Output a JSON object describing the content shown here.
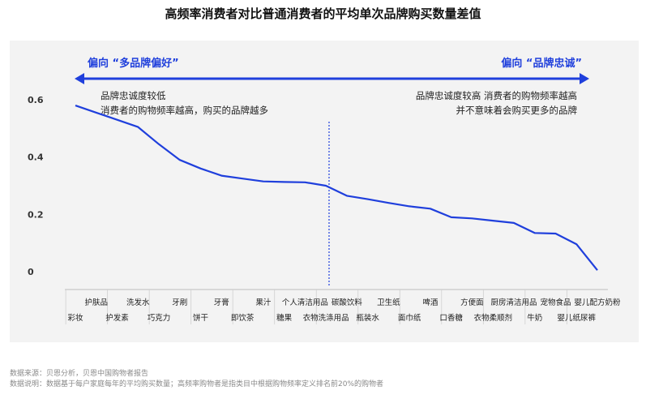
{
  "title": "高频率消费者对比普通消费者的平均单次品牌购买数量差值",
  "colors": {
    "line": "#1f3fdc",
    "arrow": "#1f3fdc",
    "panel": "#f3f3f3",
    "text": "#222222"
  },
  "arrow": {
    "left_label": "偏向 “多品牌偏好”",
    "right_label": "偏向 “品牌忠诚”"
  },
  "annotations": {
    "left": [
      "品牌忠诚度较低",
      "消费者的购物频率越高，购买的品牌越多"
    ],
    "right": [
      "品牌忠诚度较高 消费者的购物频率越高",
      "并不意味着会购买更多的品牌"
    ]
  },
  "chart_data": {
    "type": "line",
    "title": "高频率消费者对比普通消费者的平均单次品牌购买数量差值",
    "xlabel": "",
    "ylabel": "",
    "ylim": [
      0,
      0.6
    ],
    "yticks": [
      0,
      0.2,
      0.4,
      0.6
    ],
    "grid": false,
    "categories": [
      "彩妆",
      "护肤品",
      "护发素",
      "洗发水",
      "巧克力",
      "牙刷",
      "饼干",
      "牙膏",
      "即饮茶",
      "果汁",
      "糖果",
      "个人清洁用品",
      "衣物洗涤用品",
      "碳酸饮料",
      "瓶装水",
      "卫生纸",
      "面巾纸",
      "啤酒",
      "口香糖",
      "方便面",
      "衣物柔顺剂",
      "厨房清洁用品",
      "牛奶",
      "宠物食品",
      "婴儿纸尿裤",
      "婴儿配方奶粉"
    ],
    "series": [
      {
        "name": "",
        "values": [
          0.58,
          0.555,
          0.53,
          0.505,
          0.445,
          0.39,
          0.36,
          0.335,
          0.325,
          0.315,
          0.313,
          0.312,
          0.3,
          0.265,
          0.253,
          0.24,
          0.228,
          0.22,
          0.19,
          0.186,
          0.178,
          0.17,
          0.135,
          0.133,
          0.096,
          0.005
        ]
      }
    ],
    "divider_after_category": "衣物洗涤用品"
  },
  "footer": {
    "source": "数据来源：贝恩分析，贝恩中国购物者报告",
    "note": "数据说明：数据基于每户家庭每年的平均购买数量；高频率购物者是指类目中根据购物频率定义排名前20%的购物者"
  }
}
